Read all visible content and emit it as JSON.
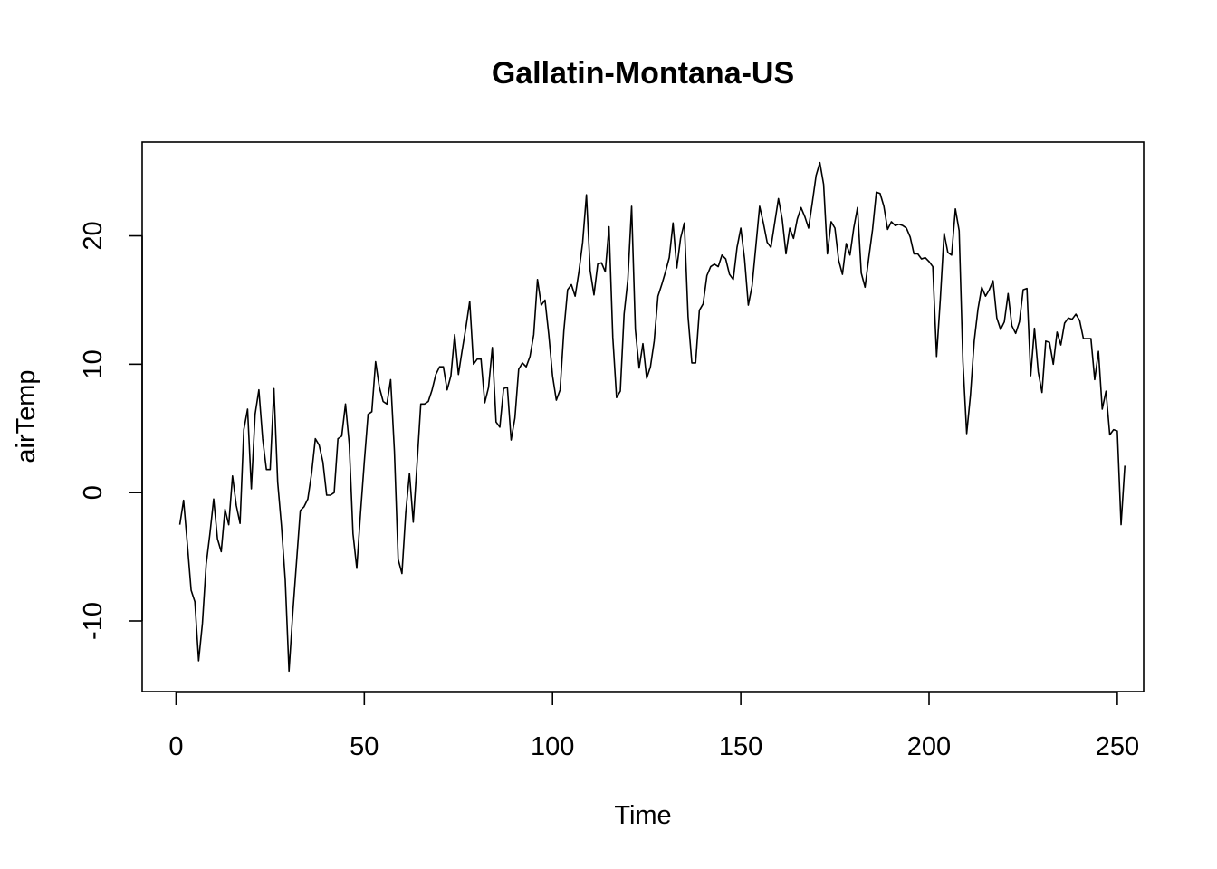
{
  "chart_data": {
    "type": "line",
    "title": "Gallatin-Montana-US",
    "xlabel": "Time",
    "ylabel": "airTemp",
    "xlim": [
      -9,
      257
    ],
    "ylim": [
      -15.5,
      27.3
    ],
    "x_ticks": [
      0,
      50,
      100,
      150,
      200,
      250
    ],
    "y_ticks": [
      -10,
      0,
      10,
      20
    ],
    "grid": false,
    "legend": "none",
    "line_color": "#000000",
    "series": [
      {
        "x_start": 1,
        "x_step": 1,
        "values": [
          -2.5,
          -0.6,
          -4.0,
          -7.6,
          -8.5,
          -13.1,
          -10.2,
          -5.6,
          -3.2,
          -0.5,
          -3.6,
          -4.6,
          -1.3,
          -2.5,
          1.3,
          -1.0,
          -2.4,
          4.9,
          6.5,
          0.3,
          6.1,
          8.0,
          4.2,
          1.8,
          1.8,
          8.1,
          0.8,
          -2.6,
          -6.8,
          -13.9,
          -9.4,
          -5.4,
          -1.4,
          -1.1,
          -0.5,
          1.5,
          4.2,
          3.7,
          2.4,
          -0.2,
          -0.2,
          0.0,
          4.2,
          4.4,
          6.9,
          3.8,
          -3.2,
          -5.9,
          -1.6,
          2.4,
          6.1,
          6.3,
          10.2,
          8.2,
          7.1,
          6.9,
          8.8,
          3.2,
          -5.2,
          -6.3,
          -1.6,
          1.5,
          -2.3,
          2.2,
          6.9,
          6.9,
          7.1,
          8.0,
          9.2,
          9.8,
          9.8,
          8.0,
          9.1,
          12.3,
          9.2,
          11.1,
          12.9,
          14.9,
          10.0,
          10.4,
          10.4,
          7.0,
          8.2,
          11.3,
          5.5,
          5.1,
          8.1,
          8.2,
          4.1,
          5.8,
          9.6,
          10.1,
          9.8,
          10.6,
          12.3,
          16.6,
          14.6,
          15.0,
          12.3,
          9.1,
          7.2,
          8.0,
          12.6,
          15.8,
          16.2,
          15.3,
          17.2,
          19.5,
          23.2,
          17.3,
          15.4,
          17.8,
          17.9,
          17.2,
          20.7,
          12.1,
          7.4,
          7.9,
          13.9,
          16.6,
          22.3,
          12.7,
          9.7,
          11.6,
          8.9,
          9.8,
          11.8,
          15.3,
          16.2,
          17.2,
          18.3,
          21.0,
          17.5,
          19.8,
          21.0,
          13.7,
          10.1,
          10.1,
          14.2,
          14.7,
          16.9,
          17.6,
          17.8,
          17.6,
          18.5,
          18.2,
          17.0,
          16.6,
          19.1,
          20.6,
          18.2,
          14.6,
          16.1,
          19.2,
          22.3,
          21.0,
          19.5,
          19.1,
          21.0,
          22.9,
          21.3,
          18.6,
          20.6,
          19.8,
          21.3,
          22.2,
          21.5,
          20.6,
          22.6,
          24.7,
          25.7,
          24.0,
          18.6,
          21.1,
          20.6,
          18.1,
          17.0,
          19.4,
          18.5,
          20.6,
          22.2,
          17.1,
          16.0,
          18.3,
          20.5,
          23.4,
          23.3,
          22.3,
          20.5,
          21.1,
          20.8,
          20.9,
          20.8,
          20.6,
          19.9,
          18.6,
          18.6,
          18.2,
          18.3,
          18.0,
          17.6,
          10.6,
          15.1,
          20.2,
          18.7,
          18.5,
          22.1,
          20.4,
          10.2,
          4.6,
          7.6,
          11.8,
          14.3,
          16.0,
          15.3,
          15.8,
          16.5,
          13.6,
          12.7,
          13.3,
          15.5,
          13.0,
          12.4,
          13.3,
          15.8,
          15.9,
          9.1,
          12.8,
          9.4,
          7.8,
          11.8,
          11.7,
          10.0,
          12.5,
          11.5,
          13.2,
          13.6,
          13.5,
          13.9,
          13.4,
          12.0,
          12.0,
          12.0,
          8.8,
          11.0,
          6.5,
          7.9,
          4.5,
          4.9,
          4.8,
          -2.5,
          2.1
        ]
      }
    ]
  }
}
